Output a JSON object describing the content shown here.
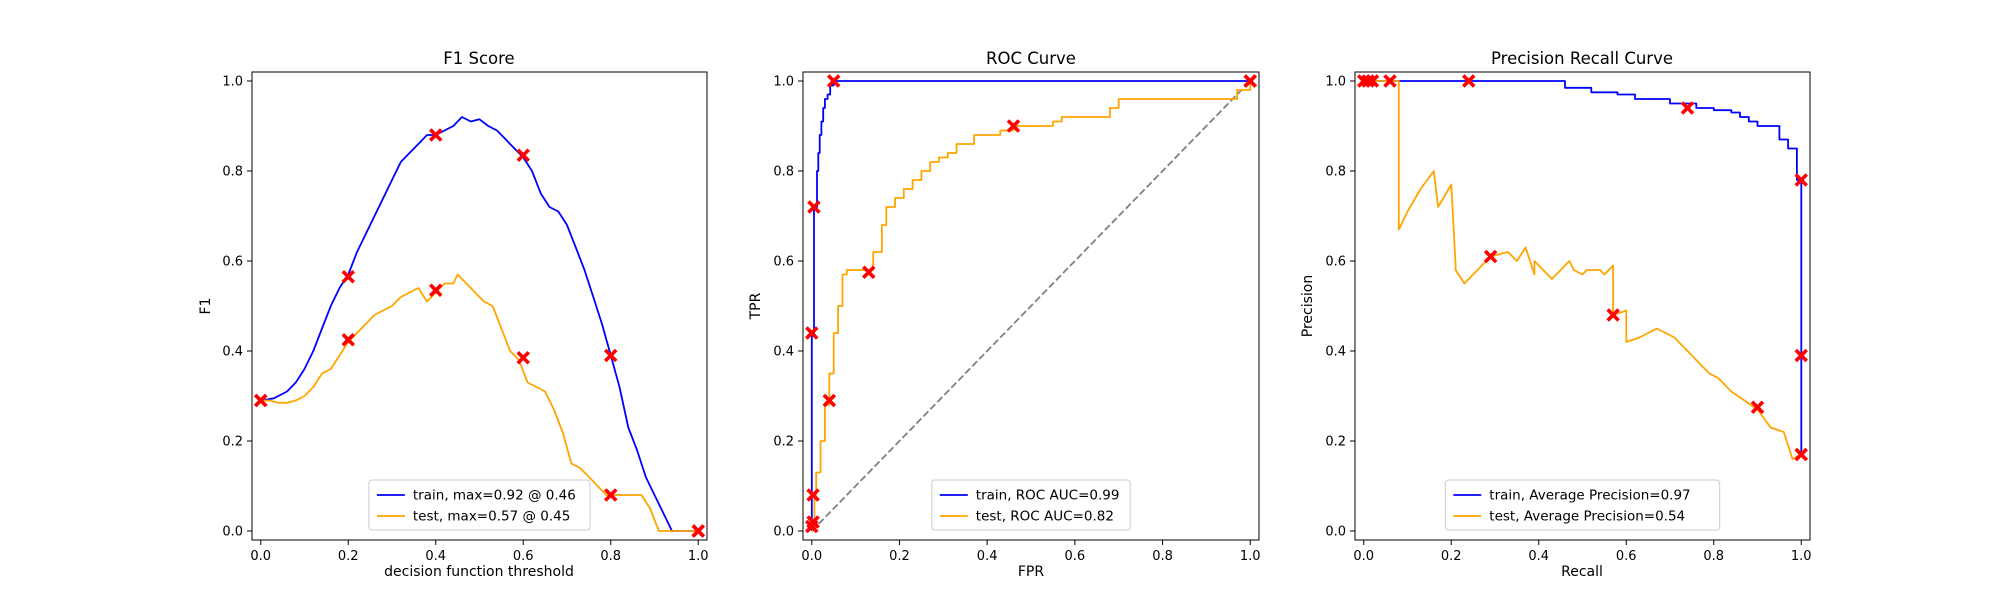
{
  "colors": {
    "train": "#0000ff",
    "test": "#ffa500",
    "marker": "#ff0000",
    "diagonal": "#808080"
  },
  "chart_data": [
    {
      "type": "line",
      "title": "F1 Score",
      "xlabel": "decision function threshold",
      "ylabel": "F1",
      "xlim": [
        0.0,
        1.0
      ],
      "ylim": [
        0.0,
        1.0
      ],
      "xticks": [
        "0.0",
        "0.2",
        "0.4",
        "0.6",
        "0.8",
        "1.0"
      ],
      "yticks": [
        "0.0",
        "0.2",
        "0.4",
        "0.6",
        "0.8",
        "1.0"
      ],
      "legend_position": "lower-center",
      "series": [
        {
          "name": "train, max=0.92 @ 0.46",
          "color": "train",
          "x": [
            0.0,
            0.03,
            0.06,
            0.08,
            0.1,
            0.12,
            0.14,
            0.16,
            0.18,
            0.2,
            0.22,
            0.24,
            0.26,
            0.28,
            0.3,
            0.32,
            0.34,
            0.36,
            0.38,
            0.4,
            0.42,
            0.44,
            0.46,
            0.48,
            0.5,
            0.52,
            0.54,
            0.56,
            0.58,
            0.6,
            0.62,
            0.64,
            0.66,
            0.68,
            0.7,
            0.72,
            0.74,
            0.76,
            0.78,
            0.8,
            0.82,
            0.84,
            0.86,
            0.88,
            0.9,
            0.92,
            0.94,
            1.0
          ],
          "y": [
            0.29,
            0.295,
            0.31,
            0.33,
            0.36,
            0.4,
            0.45,
            0.5,
            0.54,
            0.57,
            0.62,
            0.66,
            0.7,
            0.74,
            0.78,
            0.82,
            0.84,
            0.86,
            0.88,
            0.88,
            0.89,
            0.9,
            0.92,
            0.91,
            0.915,
            0.9,
            0.89,
            0.87,
            0.85,
            0.83,
            0.8,
            0.75,
            0.72,
            0.71,
            0.68,
            0.63,
            0.58,
            0.52,
            0.46,
            0.39,
            0.32,
            0.23,
            0.18,
            0.12,
            0.08,
            0.04,
            0.0,
            0.0
          ]
        },
        {
          "name": "test, max=0.57 @ 0.45",
          "color": "test",
          "x": [
            0.0,
            0.02,
            0.04,
            0.06,
            0.08,
            0.1,
            0.12,
            0.14,
            0.16,
            0.18,
            0.2,
            0.22,
            0.24,
            0.26,
            0.28,
            0.3,
            0.32,
            0.34,
            0.36,
            0.38,
            0.4,
            0.42,
            0.44,
            0.45,
            0.47,
            0.49,
            0.51,
            0.53,
            0.55,
            0.57,
            0.59,
            0.61,
            0.63,
            0.65,
            0.67,
            0.69,
            0.71,
            0.73,
            0.75,
            0.77,
            0.79,
            0.81,
            0.83,
            0.85,
            0.87,
            0.89,
            0.91,
            0.94,
            1.0
          ],
          "y": [
            0.29,
            0.29,
            0.285,
            0.285,
            0.29,
            0.3,
            0.32,
            0.35,
            0.36,
            0.39,
            0.42,
            0.44,
            0.46,
            0.48,
            0.49,
            0.5,
            0.52,
            0.53,
            0.54,
            0.51,
            0.53,
            0.55,
            0.55,
            0.57,
            0.55,
            0.53,
            0.51,
            0.5,
            0.45,
            0.4,
            0.38,
            0.33,
            0.32,
            0.31,
            0.27,
            0.22,
            0.15,
            0.14,
            0.12,
            0.1,
            0.08,
            0.08,
            0.08,
            0.08,
            0.08,
            0.05,
            0.0,
            0.0,
            0.0
          ]
        }
      ],
      "markers": [
        {
          "series": 0,
          "x": [
            0.0,
            0.2,
            0.4,
            0.6,
            0.8,
            1.0
          ],
          "y": [
            0.29,
            0.565,
            0.88,
            0.835,
            0.39,
            0.0
          ]
        },
        {
          "series": 1,
          "x": [
            0.0,
            0.2,
            0.4,
            0.6,
            0.8,
            1.0
          ],
          "y": [
            0.29,
            0.425,
            0.535,
            0.385,
            0.08,
            0.0
          ]
        }
      ]
    },
    {
      "type": "line",
      "title": "ROC Curve",
      "xlabel": "FPR",
      "ylabel": "TPR",
      "xlim": [
        0.0,
        1.0
      ],
      "ylim": [
        0.0,
        1.0
      ],
      "xticks": [
        "0.0",
        "0.2",
        "0.4",
        "0.6",
        "0.8",
        "1.0"
      ],
      "yticks": [
        "0.0",
        "0.2",
        "0.4",
        "0.6",
        "0.8",
        "1.0"
      ],
      "legend_position": "lower-center",
      "diagonal": true,
      "series": [
        {
          "name": "train, ROC AUC=0.99",
          "color": "train",
          "step": true,
          "x": [
            0.0,
            0.0,
            0.005,
            0.005,
            0.01,
            0.012,
            0.015,
            0.018,
            0.022,
            0.026,
            0.03,
            0.036,
            0.042,
            0.05,
            1.0
          ],
          "y": [
            0.0,
            0.44,
            0.44,
            0.72,
            0.72,
            0.8,
            0.84,
            0.88,
            0.91,
            0.94,
            0.96,
            0.97,
            0.99,
            1.0,
            1.0
          ]
        },
        {
          "name": "test, ROC AUC=0.82",
          "color": "test",
          "step": true,
          "x": [
            0.0,
            0.003,
            0.006,
            0.01,
            0.02,
            0.03,
            0.04,
            0.05,
            0.06,
            0.07,
            0.08,
            0.1,
            0.13,
            0.14,
            0.16,
            0.17,
            0.19,
            0.21,
            0.23,
            0.25,
            0.27,
            0.29,
            0.31,
            0.33,
            0.35,
            0.37,
            0.39,
            0.41,
            0.43,
            0.46,
            0.55,
            0.57,
            0.68,
            0.7,
            0.97,
            1.0
          ],
          "y": [
            0.0,
            0.02,
            0.08,
            0.13,
            0.2,
            0.28,
            0.35,
            0.44,
            0.5,
            0.57,
            0.58,
            0.58,
            0.58,
            0.62,
            0.68,
            0.72,
            0.74,
            0.76,
            0.78,
            0.8,
            0.82,
            0.83,
            0.84,
            0.86,
            0.86,
            0.88,
            0.88,
            0.88,
            0.89,
            0.9,
            0.91,
            0.92,
            0.94,
            0.96,
            0.98,
            1.0
          ]
        }
      ],
      "markers": [
        {
          "series": 0,
          "x": [
            0.0,
            0.005,
            0.05,
            1.0
          ],
          "y": [
            0.44,
            0.72,
            1.0,
            1.0
          ]
        },
        {
          "series": 1,
          "x": [
            0.0,
            0.003,
            0.003,
            0.04,
            0.13,
            0.46,
            1.0
          ],
          "y": [
            0.01,
            0.02,
            0.08,
            0.29,
            0.575,
            0.9,
            1.0
          ]
        }
      ]
    },
    {
      "type": "line",
      "title": "Precision Recall Curve",
      "xlabel": "Recall",
      "ylabel": "Precision",
      "xlim": [
        0.0,
        1.0
      ],
      "ylim": [
        0.0,
        1.0
      ],
      "xticks": [
        "0.0",
        "0.2",
        "0.4",
        "0.6",
        "0.8",
        "1.0"
      ],
      "yticks": [
        "0.0",
        "0.2",
        "0.4",
        "0.6",
        "0.8",
        "1.0"
      ],
      "legend_position": "lower-center",
      "series": [
        {
          "name": "train, Average Precision=0.97",
          "color": "train",
          "step": true,
          "x": [
            0.0,
            0.44,
            0.46,
            0.52,
            0.58,
            0.62,
            0.7,
            0.76,
            0.8,
            0.84,
            0.86,
            0.88,
            0.9,
            0.92,
            0.95,
            0.97,
            0.99,
            1.0,
            1.0
          ],
          "y": [
            1.0,
            1.0,
            0.985,
            0.975,
            0.97,
            0.96,
            0.95,
            0.94,
            0.935,
            0.93,
            0.92,
            0.91,
            0.9,
            0.9,
            0.87,
            0.85,
            0.78,
            0.39,
            0.17
          ]
        },
        {
          "name": "test, Average Precision=0.54",
          "color": "test",
          "x": [
            0.0,
            0.08,
            0.08,
            0.1,
            0.13,
            0.16,
            0.17,
            0.2,
            0.21,
            0.21,
            0.23,
            0.27,
            0.29,
            0.33,
            0.35,
            0.37,
            0.39,
            0.39,
            0.43,
            0.47,
            0.48,
            0.5,
            0.51,
            0.53,
            0.54,
            0.55,
            0.57,
            0.57,
            0.6,
            0.6,
            0.63,
            0.67,
            0.69,
            0.71,
            0.73,
            0.75,
            0.77,
            0.79,
            0.81,
            0.84,
            0.87,
            0.9,
            0.93,
            0.96,
            0.98,
            1.0
          ],
          "y": [
            1.0,
            1.0,
            0.67,
            0.71,
            0.76,
            0.8,
            0.72,
            0.77,
            0.59,
            0.58,
            0.55,
            0.59,
            0.61,
            0.62,
            0.6,
            0.63,
            0.57,
            0.6,
            0.56,
            0.6,
            0.58,
            0.57,
            0.58,
            0.58,
            0.58,
            0.57,
            0.59,
            0.48,
            0.49,
            0.42,
            0.43,
            0.45,
            0.44,
            0.43,
            0.41,
            0.39,
            0.37,
            0.35,
            0.34,
            0.31,
            0.29,
            0.27,
            0.23,
            0.22,
            0.16,
            0.17
          ]
        }
      ],
      "markers": [
        {
          "series": 0,
          "x": [
            0.01,
            0.24,
            0.74,
            1.0,
            1.0,
            1.0
          ],
          "y": [
            1.0,
            1.0,
            0.94,
            0.78,
            0.39,
            0.17
          ]
        },
        {
          "series": 1,
          "x": [
            0.0,
            0.02,
            0.06,
            0.29,
            0.57,
            0.9,
            1.0
          ],
          "y": [
            1.0,
            1.0,
            1.0,
            0.61,
            0.48,
            0.275,
            0.17
          ]
        }
      ]
    }
  ]
}
